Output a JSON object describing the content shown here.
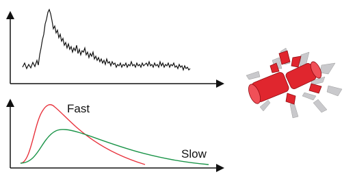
{
  "labels": {
    "fast": "Fast",
    "slow": "Slow"
  }
}
